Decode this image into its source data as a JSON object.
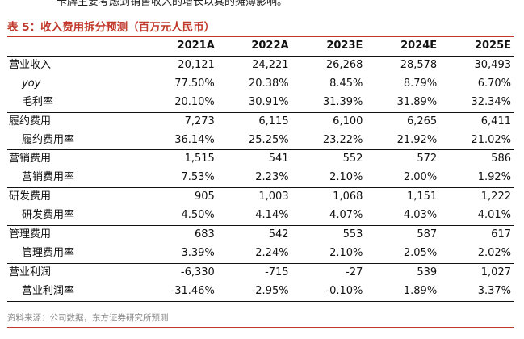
{
  "cut_line": "卡牌主要考虑到销售收入的增长以其的摊薄影响。",
  "title": "表 5：收入费用拆分预测（百万元人民币）",
  "table": {
    "header": [
      "",
      "2021A",
      "2022A",
      "2023E",
      "2024E",
      "2025E"
    ],
    "rows": [
      {
        "label": "营业收入",
        "sub": false,
        "italic": false,
        "sep": false,
        "values": [
          "20,121",
          "24,221",
          "26,268",
          "28,578",
          "30,493"
        ]
      },
      {
        "label": "yoy",
        "sub": true,
        "italic": true,
        "sep": false,
        "values": [
          "77.50%",
          "20.38%",
          "8.45%",
          "8.79%",
          "6.70%"
        ]
      },
      {
        "label": "毛利率",
        "sub": true,
        "italic": false,
        "sep": false,
        "values": [
          "20.10%",
          "30.91%",
          "31.39%",
          "31.89%",
          "32.34%"
        ]
      },
      {
        "label": "履约费用",
        "sub": false,
        "italic": false,
        "sep": true,
        "values": [
          "7,273",
          "6,115",
          "6,100",
          "6,265",
          "6,411"
        ]
      },
      {
        "label": "履约费用率",
        "sub": true,
        "italic": false,
        "sep": false,
        "values": [
          "36.14%",
          "25.25%",
          "23.22%",
          "21.92%",
          "21.02%"
        ]
      },
      {
        "label": "营销费用",
        "sub": false,
        "italic": false,
        "sep": true,
        "values": [
          "1,515",
          "541",
          "552",
          "572",
          "586"
        ]
      },
      {
        "label": "营销费用率",
        "sub": true,
        "italic": false,
        "sep": false,
        "values": [
          "7.53%",
          "2.23%",
          "2.10%",
          "2.00%",
          "1.92%"
        ]
      },
      {
        "label": "研发费用",
        "sub": false,
        "italic": false,
        "sep": true,
        "values": [
          "905",
          "1,003",
          "1,068",
          "1,151",
          "1,222"
        ]
      },
      {
        "label": "研发费用率",
        "sub": true,
        "italic": false,
        "sep": false,
        "values": [
          "4.50%",
          "4.14%",
          "4.07%",
          "4.03%",
          "4.01%"
        ]
      },
      {
        "label": "管理费用",
        "sub": false,
        "italic": false,
        "sep": true,
        "values": [
          "683",
          "542",
          "553",
          "587",
          "617"
        ]
      },
      {
        "label": "管理费用率",
        "sub": true,
        "italic": false,
        "sep": false,
        "values": [
          "3.39%",
          "2.24%",
          "2.10%",
          "2.05%",
          "2.02%"
        ]
      },
      {
        "label": "营业利润",
        "sub": false,
        "italic": false,
        "sep": true,
        "values": [
          "-6,330",
          "-715",
          "-27",
          "539",
          "1,027"
        ]
      },
      {
        "label": "营业利润率",
        "sub": true,
        "italic": false,
        "sep": false,
        "values": [
          "-31.46%",
          "-2.95%",
          "-0.10%",
          "1.89%",
          "3.37%"
        ]
      }
    ]
  },
  "source": "资料来源：公司数据，东方证券研究所预测",
  "colors": {
    "accent": "#c0392b",
    "source_text": "#888888"
  }
}
